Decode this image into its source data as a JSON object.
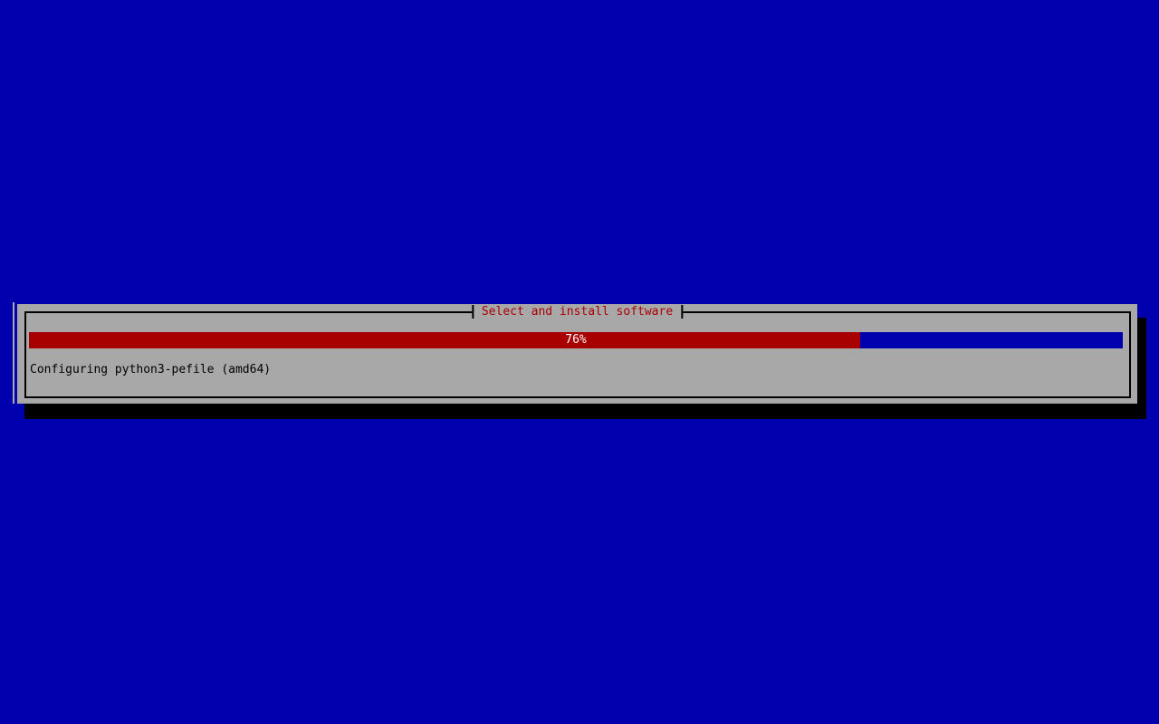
{
  "screen": {
    "background_color": "#0000AE"
  },
  "dialog": {
    "title": "Select and install software",
    "title_color": "#A80000",
    "background_color": "#A8A8A8",
    "border_color": "#000000",
    "shadow_color": "#000000",
    "progress": {
      "percent": 76,
      "label": "76%",
      "fill_color": "#A80000",
      "track_color": "#0000AE",
      "label_color": "#FFFFFF"
    },
    "status_text": "Configuring python3-pefile (amd64)"
  }
}
